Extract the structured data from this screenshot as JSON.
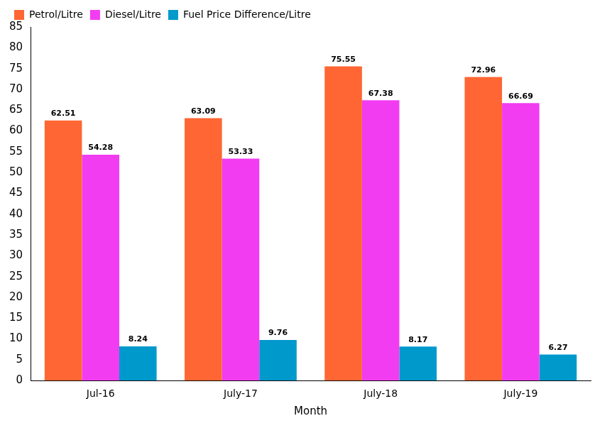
{
  "chart_data": {
    "type": "bar",
    "x_label": "Month",
    "categories": [
      "Jul-16",
      "July-17",
      "July-18",
      "July-19"
    ],
    "series": [
      {
        "name": "Petrol/Litre",
        "color": "#ff6633",
        "values": [
          62.51,
          63.09,
          75.55,
          72.96
        ]
      },
      {
        "name": "Diesel/Litre",
        "color": "#f23cf2",
        "values": [
          54.28,
          53.33,
          67.38,
          66.69
        ]
      },
      {
        "name": "Fuel Price Difference/Litre",
        "color": "#0099cc",
        "values": [
          8.24,
          9.76,
          8.17,
          6.27
        ]
      }
    ],
    "ylim": [
      0,
      85
    ],
    "yticks": [
      0,
      5,
      10,
      15,
      20,
      25,
      30,
      35,
      40,
      45,
      50,
      55,
      60,
      65,
      70,
      75,
      80,
      85
    ],
    "grid": false,
    "legend": "upper left",
    "data_labels": true
  }
}
